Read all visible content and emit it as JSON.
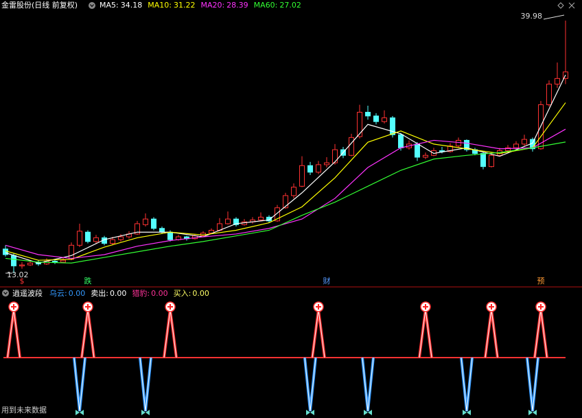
{
  "chart_data": [
    {
      "type": "candlestick",
      "title": "金雷股份(日线 前复权)",
      "ylim": [
        13.02,
        39.98
      ],
      "up_color": "#ff3232",
      "down_color": "#54ffff",
      "ohlc": [
        [
          15.6,
          16.0,
          14.8,
          15.0
        ],
        [
          14.9,
          15.1,
          13.02,
          13.8
        ],
        [
          13.8,
          14.2,
          13.5,
          13.9
        ],
        [
          13.9,
          14.4,
          13.8,
          14.1
        ],
        [
          14.2,
          14.4,
          13.8,
          14.0
        ],
        [
          14.0,
          14.6,
          13.9,
          14.3
        ],
        [
          14.3,
          14.5,
          14.0,
          14.2
        ],
        [
          14.2,
          14.7,
          14.1,
          14.4
        ],
        [
          14.5,
          16.3,
          14.4,
          16.0
        ],
        [
          16.0,
          18.3,
          15.8,
          17.5
        ],
        [
          17.4,
          17.6,
          16.2,
          16.4
        ],
        [
          16.4,
          17.1,
          16.2,
          16.8
        ],
        [
          16.8,
          17.0,
          16.0,
          16.2
        ],
        [
          16.2,
          16.9,
          16.0,
          16.6
        ],
        [
          16.6,
          17.2,
          16.4,
          16.9
        ],
        [
          16.9,
          17.5,
          16.7,
          17.2
        ],
        [
          17.2,
          18.6,
          17.1,
          18.3
        ],
        [
          18.2,
          19.4,
          18.0,
          18.8
        ],
        [
          18.8,
          19.0,
          17.6,
          17.8
        ],
        [
          17.8,
          18.0,
          17.2,
          17.4
        ],
        [
          17.4,
          17.6,
          16.4,
          16.6
        ],
        [
          16.6,
          17.1,
          16.5,
          16.9
        ],
        [
          16.9,
          17.0,
          16.5,
          16.7
        ],
        [
          16.7,
          17.2,
          16.6,
          17.0
        ],
        [
          17.0,
          17.5,
          16.9,
          17.3
        ],
        [
          17.3,
          17.8,
          17.2,
          17.6
        ],
        [
          17.6,
          18.9,
          17.5,
          18.3
        ],
        [
          18.3,
          19.6,
          18.2,
          18.8
        ],
        [
          18.8,
          19.0,
          18.0,
          18.2
        ],
        [
          18.2,
          18.8,
          18.1,
          18.5
        ],
        [
          18.5,
          19.0,
          18.3,
          18.7
        ],
        [
          18.7,
          19.5,
          18.6,
          19.0
        ],
        [
          19.0,
          19.2,
          18.4,
          18.6
        ],
        [
          18.6,
          20.3,
          18.5,
          20.0
        ],
        [
          20.0,
          21.6,
          19.9,
          21.3
        ],
        [
          21.3,
          22.6,
          21.0,
          22.2
        ],
        [
          22.3,
          25.5,
          22.2,
          24.5
        ],
        [
          24.5,
          24.9,
          23.5,
          23.8
        ],
        [
          23.8,
          25.0,
          23.6,
          24.6
        ],
        [
          24.6,
          25.4,
          24.3,
          24.8
        ],
        [
          24.8,
          26.8,
          24.6,
          26.2
        ],
        [
          26.2,
          26.5,
          25.3,
          25.6
        ],
        [
          25.6,
          27.9,
          25.5,
          27.5
        ],
        [
          27.6,
          31.0,
          27.4,
          30.2
        ],
        [
          30.2,
          30.9,
          29.4,
          29.8
        ],
        [
          29.8,
          30.1,
          28.9,
          29.2
        ],
        [
          29.2,
          30.4,
          29.0,
          29.6
        ],
        [
          29.6,
          29.8,
          27.5,
          27.8
        ],
        [
          27.8,
          28.0,
          26.1,
          26.4
        ],
        [
          26.4,
          27.2,
          26.2,
          26.8
        ],
        [
          26.8,
          27.0,
          25.0,
          25.4
        ],
        [
          25.4,
          25.9,
          25.2,
          25.6
        ],
        [
          25.6,
          26.4,
          25.5,
          26.1
        ],
        [
          26.1,
          26.5,
          25.8,
          26.0
        ],
        [
          26.0,
          26.9,
          25.9,
          26.6
        ],
        [
          26.6,
          27.5,
          26.4,
          27.2
        ],
        [
          27.2,
          27.3,
          26.0,
          26.2
        ],
        [
          26.2,
          26.4,
          25.6,
          25.8
        ],
        [
          25.8,
          26.0,
          24.1,
          24.4
        ],
        [
          24.4,
          25.9,
          24.3,
          25.6
        ],
        [
          25.6,
          26.4,
          25.5,
          26.1
        ],
        [
          26.1,
          26.7,
          25.9,
          26.4
        ],
        [
          26.4,
          27.1,
          26.2,
          26.8
        ],
        [
          26.8,
          27.8,
          26.6,
          27.3
        ],
        [
          27.3,
          27.5,
          26.0,
          26.3
        ],
        [
          26.3,
          31.4,
          26.2,
          31.0
        ],
        [
          31.0,
          33.6,
          30.8,
          33.2
        ],
        [
          33.2,
          35.5,
          32.8,
          33.8
        ],
        [
          33.8,
          39.98,
          33.2,
          34.5
        ]
      ],
      "series": [
        {
          "name": "MA5:",
          "color": "#ffffff",
          "value": 34.18,
          "x": [
            0,
            4,
            8,
            12,
            16,
            20,
            24,
            28,
            32,
            36,
            40,
            44,
            48,
            52,
            56,
            60,
            64,
            68
          ],
          "values": [
            15.2,
            14.1,
            14.9,
            16.6,
            17.4,
            17.4,
            16.9,
            18.3,
            18.7,
            21.6,
            24.9,
            28.9,
            27.9,
            25.8,
            26.4,
            25.5,
            26.9,
            34.18
          ]
        },
        {
          "name": "MA10:",
          "color": "#ffff00",
          "value": 31.22,
          "x": [
            0,
            4,
            8,
            12,
            16,
            20,
            24,
            28,
            32,
            36,
            40,
            44,
            48,
            52,
            56,
            60,
            64,
            68
          ],
          "values": [
            15.4,
            14.4,
            14.5,
            15.8,
            16.8,
            17.4,
            17.1,
            17.6,
            18.4,
            20.1,
            23.2,
            27.0,
            28.2,
            26.8,
            26.3,
            25.8,
            26.4,
            31.22
          ]
        },
        {
          "name": "MA20:",
          "color": "#ff33ff",
          "value": 28.39,
          "x": [
            0,
            4,
            8,
            12,
            16,
            20,
            24,
            28,
            32,
            36,
            40,
            44,
            48,
            52,
            56,
            60,
            64,
            68
          ],
          "values": [
            16.0,
            15.0,
            14.6,
            15.0,
            15.9,
            16.5,
            16.9,
            17.2,
            17.8,
            18.8,
            21.0,
            24.3,
            26.4,
            27.2,
            26.9,
            26.3,
            26.4,
            28.39
          ]
        },
        {
          "name": "MA60:",
          "color": "#33ff33",
          "value": 27.02,
          "x": [
            0,
            4,
            8,
            12,
            16,
            20,
            24,
            28,
            32,
            36,
            40,
            44,
            48,
            52,
            56,
            60,
            64,
            68
          ],
          "values": [
            14.6,
            14.2,
            14.1,
            14.7,
            15.3,
            15.9,
            16.4,
            17.0,
            17.6,
            19.2,
            20.6,
            22.3,
            24.0,
            25.2,
            25.6,
            25.9,
            26.4,
            27.02
          ]
        }
      ],
      "events": [
        {
          "index": 2,
          "text": "$",
          "color": "#ff3333"
        },
        {
          "index": 10,
          "text": "跌",
          "color": "#33ff66"
        },
        {
          "index": 39,
          "text": "财",
          "color": "#5599ff"
        },
        {
          "index": 65,
          "text": "预",
          "color": "#ff9933"
        }
      ]
    },
    {
      "type": "signal",
      "title": "逍遥波段",
      "series": [
        {
          "name": "乌云:",
          "color": "#3399ff",
          "value": 0,
          "value_label": "0.00"
        },
        {
          "name": "卖出:",
          "color": "#ffffff",
          "value": 0,
          "value_label": "0.00"
        },
        {
          "name": "猎豹:",
          "color": "#ff3399",
          "value": 0,
          "value_label": "0.00"
        },
        {
          "name": "买入:",
          "color": "#ffff66",
          "value": 0,
          "value_label": "0.00"
        }
      ],
      "sell_signals": [
        1,
        10,
        20,
        38,
        51,
        59,
        65
      ],
      "buy_signals": [
        9,
        17,
        37,
        44,
        56,
        64
      ],
      "note": "用到未来数据"
    }
  ]
}
